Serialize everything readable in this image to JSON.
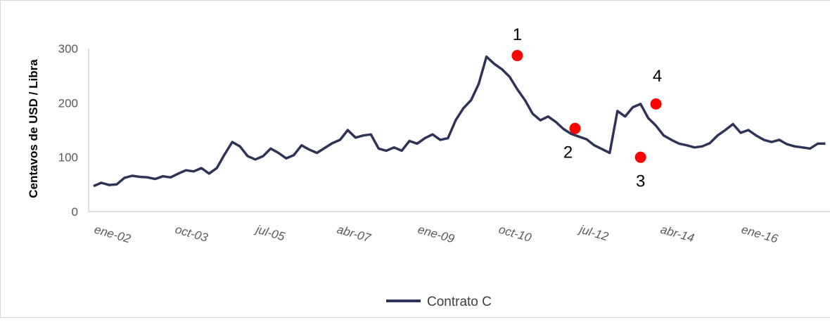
{
  "chart_data": {
    "type": "line",
    "ylabel": "Centavos de USD / Libra",
    "ylim": [
      0,
      300
    ],
    "yticks": [
      0,
      100,
      200,
      300
    ],
    "xticks": [
      {
        "label": "ene-02",
        "x": "2002-01"
      },
      {
        "label": "oct-03",
        "x": "2003-10"
      },
      {
        "label": "jul-05",
        "x": "2005-07"
      },
      {
        "label": "abr-07",
        "x": "2007-04"
      },
      {
        "label": "ene-09",
        "x": "2009-01"
      },
      {
        "label": "oct-10",
        "x": "2010-10"
      },
      {
        "label": "jul-12",
        "x": "2012-07"
      },
      {
        "label": "abr-14",
        "x": "2014-04"
      },
      {
        "label": "ene-16",
        "x": "2016-01"
      }
    ],
    "grid": false,
    "legend": "bottom",
    "colors": {
      "line": "#2e3458",
      "marker": "#ff0000",
      "axis": "#bfbfbf",
      "tick_text": "#595959"
    },
    "series": [
      {
        "name": "Contrato C",
        "x": [
          "2002-01",
          "2002-03",
          "2002-05",
          "2002-07",
          "2002-09",
          "2002-11",
          "2003-01",
          "2003-03",
          "2003-05",
          "2003-07",
          "2003-09",
          "2003-11",
          "2004-01",
          "2004-03",
          "2004-05",
          "2004-07",
          "2004-09",
          "2004-11",
          "2005-01",
          "2005-03",
          "2005-05",
          "2005-07",
          "2005-09",
          "2005-11",
          "2006-01",
          "2006-03",
          "2006-05",
          "2006-07",
          "2006-09",
          "2006-11",
          "2007-01",
          "2007-03",
          "2007-05",
          "2007-07",
          "2007-09",
          "2007-11",
          "2008-01",
          "2008-03",
          "2008-05",
          "2008-07",
          "2008-09",
          "2008-11",
          "2009-01",
          "2009-03",
          "2009-05",
          "2009-07",
          "2009-09",
          "2009-11",
          "2010-01",
          "2010-03",
          "2010-05",
          "2010-07",
          "2010-09",
          "2010-11",
          "2011-01",
          "2011-03",
          "2011-05",
          "2011-07",
          "2011-09",
          "2011-11",
          "2012-01",
          "2012-03",
          "2012-05",
          "2012-07",
          "2012-09",
          "2012-11",
          "2013-01",
          "2013-03",
          "2013-05",
          "2013-07",
          "2013-09",
          "2013-11",
          "2014-01",
          "2014-03",
          "2014-05",
          "2014-07",
          "2014-09",
          "2014-11",
          "2015-01",
          "2015-03",
          "2015-05",
          "2015-07",
          "2015-09",
          "2015-11",
          "2016-01",
          "2016-03",
          "2016-05",
          "2016-07",
          "2016-09",
          "2016-11",
          "2017-01",
          "2017-03",
          "2017-05",
          "2017-07",
          "2017-09",
          "2017-11"
        ],
        "values": [
          47,
          53,
          49,
          50,
          62,
          66,
          64,
          63,
          60,
          65,
          63,
          70,
          76,
          74,
          80,
          70,
          80,
          105,
          128,
          120,
          102,
          96,
          102,
          116,
          108,
          98,
          104,
          122,
          114,
          108,
          117,
          126,
          132,
          150,
          136,
          140,
          142,
          116,
          112,
          118,
          112,
          130,
          125,
          135,
          142,
          132,
          135,
          168,
          190,
          205,
          235,
          285,
          272,
          262,
          248,
          225,
          205,
          180,
          168,
          175,
          165,
          152,
          143,
          138,
          133,
          122,
          115,
          108,
          185,
          175,
          192,
          198,
          172,
          158,
          140,
          132,
          125,
          122,
          118,
          120,
          126,
          140,
          150,
          161,
          145,
          150,
          140,
          132,
          128,
          132,
          124,
          120,
          118,
          116,
          125,
          125
        ]
      }
    ],
    "annotations": [
      {
        "label": "1",
        "x": "2011-03",
        "value": 287
      },
      {
        "label": "2",
        "x": "2012-06",
        "value": 153
      },
      {
        "label": "3",
        "x": "2013-11",
        "value": 100
      },
      {
        "label": "4",
        "x": "2014-03",
        "value": 198
      }
    ]
  }
}
